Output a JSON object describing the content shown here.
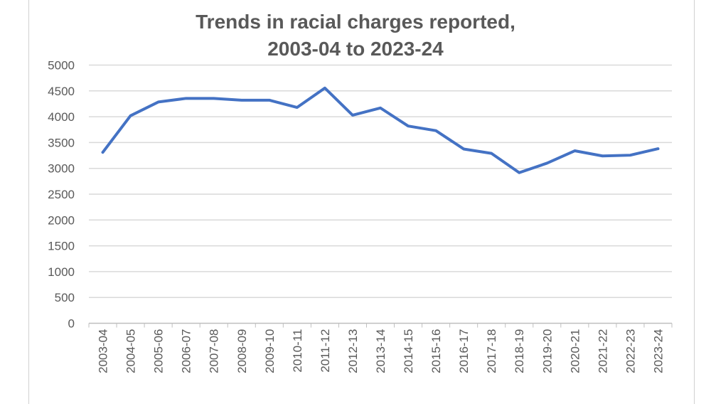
{
  "chart_data": {
    "type": "line",
    "title_line1": "Trends in racial charges reported,",
    "title_line2": "2003-04 to 2023-24",
    "xlabel": "",
    "ylabel": "",
    "categories": [
      "2003-04",
      "2004-05",
      "2005-06",
      "2006-07",
      "2007-08",
      "2008-09",
      "2009-10",
      "2010-11",
      "2011-12",
      "2012-13",
      "2013-14",
      "2014-15",
      "2015-16",
      "2016-17",
      "2017-18",
      "2018-19",
      "2019-20",
      "2020-21",
      "2021-22",
      "2022-23",
      "2023-24"
    ],
    "series": [
      {
        "name": "Racial charges reported",
        "color": "#4472C4",
        "values": [
          3310,
          4020,
          4285,
          4355,
          4355,
          4320,
          4320,
          4180,
          4555,
          4030,
          4170,
          3820,
          3730,
          3375,
          3290,
          2917,
          3100,
          3340,
          3240,
          3255,
          3380
        ]
      }
    ],
    "ylim": [
      0,
      5000
    ],
    "yticks": [
      0,
      500,
      1000,
      1500,
      2000,
      2500,
      3000,
      3500,
      4000,
      4500,
      5000
    ],
    "grid": true,
    "legend": "none"
  }
}
